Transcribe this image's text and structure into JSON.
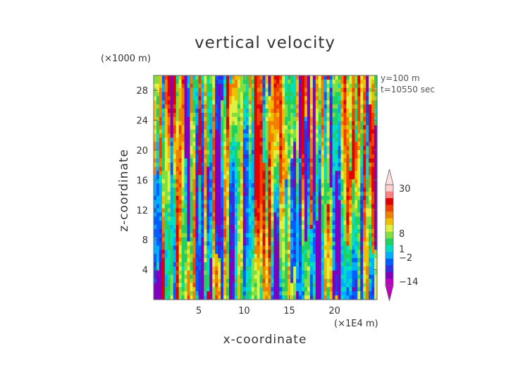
{
  "chart_data": {
    "type": "heatmap",
    "title": "vertical velocity",
    "xlabel": "x-coordinate",
    "ylabel": "z-coordinate",
    "x_unit_label": "(×1E4 m)",
    "y_unit_label": "(×1000 m)",
    "annotations": [
      "y=100 m",
      "t=10550 sec"
    ],
    "xlim": [
      0,
      24.7
    ],
    "ylim": [
      0,
      30
    ],
    "x_ticks": [
      5,
      10,
      15,
      20
    ],
    "y_ticks": [
      4,
      8,
      12,
      16,
      20,
      24,
      28
    ],
    "colorbar": {
      "tick_labels": [
        "30",
        "8",
        "1",
        "−2",
        "−14"
      ],
      "levels": [
        -14,
        -2,
        1,
        8,
        30
      ],
      "colors": [
        "#c000c0",
        "#8000c0",
        "#3030e0",
        "#0060ff",
        "#00b0ff",
        "#00e0c0",
        "#20d060",
        "#80e040",
        "#e0f040",
        "#f0c000",
        "#f08000",
        "#f04000",
        "#e00000",
        "#ff8080",
        "#ffd0d0"
      ]
    },
    "field_description": "vertical velocity field, values roughly -14 to 30, vertically elongated streaks"
  }
}
